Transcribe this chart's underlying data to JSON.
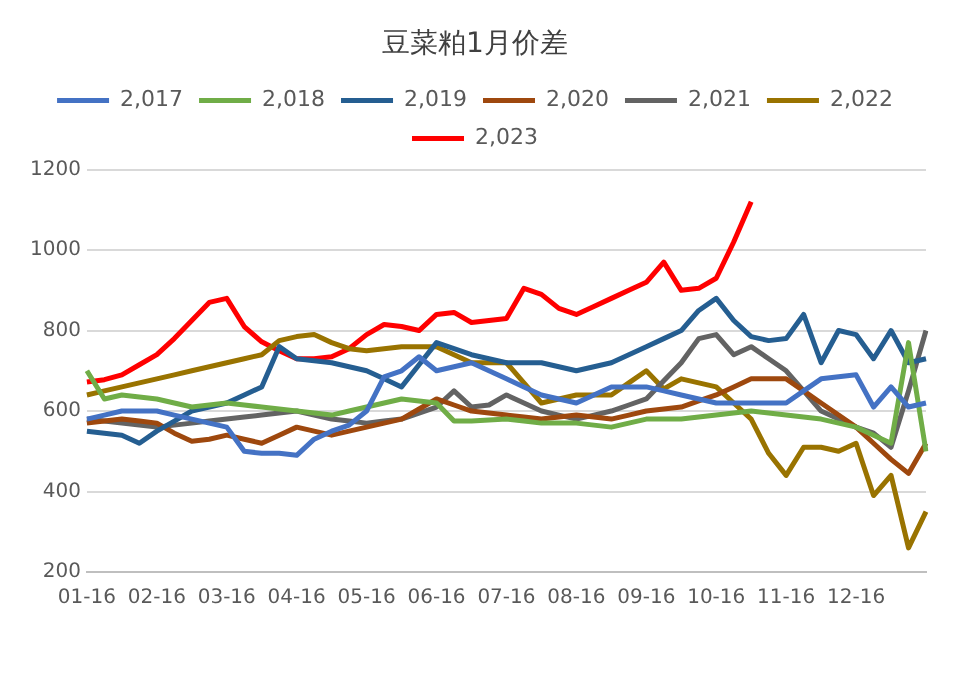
{
  "chart_data": {
    "type": "line",
    "title": "豆菜粕1月价差",
    "categories": [
      "01-16",
      null,
      null,
      null,
      "02-16",
      null,
      null,
      null,
      "03-16",
      null,
      null,
      null,
      "04-16",
      null,
      null,
      null,
      "05-16",
      null,
      null,
      null,
      "06-16",
      null,
      null,
      null,
      "07-16",
      null,
      null,
      null,
      "08-16",
      null,
      null,
      null,
      "09-16",
      null,
      null,
      null,
      "10-16",
      null,
      null,
      null,
      "11-16",
      null,
      null,
      null,
      "12-16",
      null,
      null,
      null,
      null
    ],
    "ylim": [
      200,
      1200
    ],
    "yticks": [
      200,
      400,
      600,
      800,
      1000,
      1200
    ],
    "grid": "y",
    "legend": "top",
    "marker": "none",
    "line_style": "solid",
    "series": [
      {
        "name": "2,017",
        "color": "#4472c4",
        "values": [
          580,
          590,
          600,
          600,
          600,
          590,
          580,
          570,
          560,
          500,
          495,
          495,
          490,
          530,
          550,
          565,
          600,
          685,
          700,
          735,
          700,
          710,
          720,
          700,
          680,
          660,
          640,
          630,
          620,
          640,
          660,
          660,
          660,
          650,
          640,
          630,
          620,
          620,
          620,
          620,
          620,
          650,
          680,
          685,
          690,
          610,
          660,
          610,
          620
        ]
      },
      {
        "name": "2,018",
        "color": "#70ad47",
        "values": [
          700,
          630,
          640,
          635,
          630,
          620,
          610,
          615,
          620,
          615,
          610,
          605,
          600,
          595,
          590,
          600,
          610,
          620,
          630,
          625,
          620,
          575,
          575,
          578,
          580,
          575,
          570,
          570,
          570,
          565,
          560,
          570,
          580,
          580,
          580,
          585,
          590,
          595,
          600,
          595,
          590,
          585,
          580,
          570,
          560,
          540,
          520,
          770,
          500
        ]
      },
      {
        "name": "2,019",
        "color": "#255e91",
        "values": [
          550,
          545,
          540,
          520,
          550,
          575,
          600,
          610,
          620,
          640,
          660,
          760,
          730,
          725,
          720,
          710,
          700,
          680,
          660,
          715,
          770,
          755,
          740,
          730,
          720,
          720,
          720,
          710,
          700,
          710,
          720,
          740,
          760,
          780,
          800,
          850,
          880,
          825,
          785,
          775,
          780,
          840,
          720,
          800,
          790,
          730,
          800,
          720,
          730
        ]
      },
      {
        "name": "2,020",
        "color": "#9e480e",
        "values": [
          570,
          575,
          580,
          575,
          570,
          545,
          525,
          530,
          540,
          530,
          520,
          540,
          560,
          550,
          540,
          550,
          560,
          570,
          580,
          605,
          630,
          615,
          600,
          595,
          590,
          585,
          580,
          585,
          590,
          585,
          580,
          590,
          600,
          605,
          610,
          625,
          640,
          660,
          680,
          680,
          680,
          650,
          620,
          590,
          560,
          520,
          480,
          445,
          520
        ]
      },
      {
        "name": "2,021",
        "color": "#636363",
        "values": [
          580,
          575,
          570,
          565,
          560,
          565,
          570,
          575,
          580,
          585,
          590,
          595,
          600,
          590,
          580,
          575,
          570,
          575,
          580,
          595,
          610,
          650,
          610,
          615,
          640,
          620,
          600,
          590,
          580,
          590,
          600,
          615,
          630,
          675,
          720,
          780,
          790,
          740,
          760,
          730,
          700,
          650,
          600,
          580,
          560,
          545,
          510,
          650,
          800
        ]
      },
      {
        "name": "2,022",
        "color": "#997300",
        "values": [
          640,
          650,
          660,
          670,
          680,
          690,
          700,
          710,
          720,
          730,
          740,
          775,
          785,
          790,
          770,
          755,
          750,
          755,
          760,
          760,
          760,
          740,
          720,
          720,
          720,
          670,
          620,
          630,
          640,
          640,
          640,
          670,
          700,
          655,
          680,
          670,
          660,
          620,
          580,
          495,
          440,
          510,
          510,
          500,
          520,
          390,
          440,
          260,
          350
        ]
      },
      {
        "name": "2,023",
        "color": "#ff0000",
        "values": [
          672,
          678,
          690,
          715,
          740,
          780,
          825,
          870,
          880,
          810,
          772,
          750,
          730,
          730,
          735,
          755,
          790,
          815,
          810,
          800,
          840,
          845,
          820,
          825,
          830,
          905,
          890,
          855,
          840,
          860,
          880,
          900,
          920,
          970,
          900,
          905,
          930,
          1020,
          1120,
          null,
          null,
          null,
          null,
          null,
          null,
          null,
          null,
          null,
          null
        ]
      }
    ]
  }
}
